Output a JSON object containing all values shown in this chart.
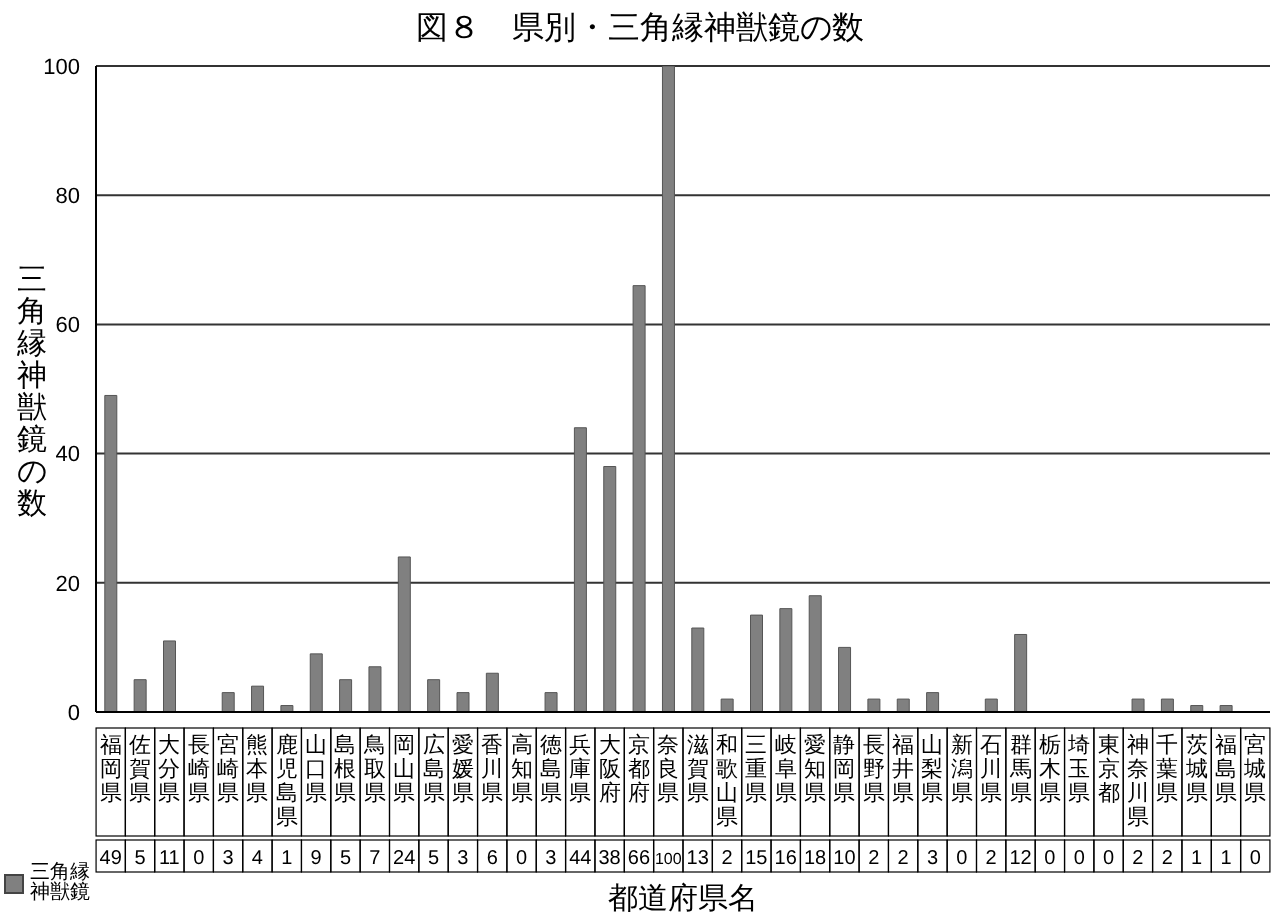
{
  "chart_data": {
    "type": "bar",
    "title": "図８　県別・三角縁神獣鏡の数",
    "xlabel": "都道府県名",
    "ylabel": "三角縁神獣鏡の数",
    "categories": [
      "福岡県",
      "佐賀県",
      "大分県",
      "長崎県",
      "宮崎県",
      "熊本県",
      "鹿児島県",
      "山口県",
      "島根県",
      "鳥取県",
      "岡山県",
      "広島県",
      "愛媛県",
      "香川県",
      "高知県",
      "徳島県",
      "兵庫県",
      "大阪府",
      "京都府",
      "奈良県",
      "滋賀県",
      "和歌山県",
      "三重県",
      "岐阜県",
      "愛知県",
      "静岡県",
      "長野県",
      "福井県",
      "山梨県",
      "新潟県",
      "石川県",
      "群馬県",
      "栃木県",
      "埼玉県",
      "東京都",
      "神奈川県",
      "千葉県",
      "茨城県",
      "福島県",
      "宮城県"
    ],
    "series": [
      {
        "name": "三角縁神獣鏡",
        "color": "#808080",
        "values": [
          49,
          5,
          11,
          0,
          3,
          4,
          1,
          9,
          5,
          7,
          24,
          5,
          3,
          6,
          0,
          3,
          44,
          38,
          66,
          100,
          13,
          2,
          15,
          16,
          18,
          10,
          2,
          2,
          3,
          0,
          2,
          12,
          0,
          0,
          0,
          2,
          2,
          1,
          1,
          0
        ]
      }
    ],
    "ylim": [
      0,
      100
    ],
    "yticks": [
      0,
      20,
      40,
      60,
      80,
      100
    ],
    "grid": "y",
    "legend": "bottom left",
    "data_labels": true
  }
}
